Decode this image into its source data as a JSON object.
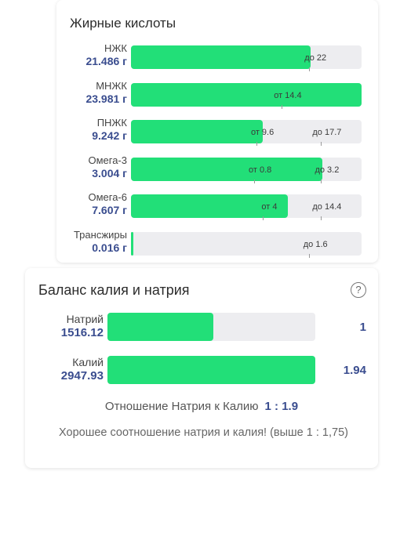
{
  "fatty_acids": {
    "title": "Жирные кислоты",
    "rows": [
      {
        "name": "НЖК",
        "value": "21.486 г",
        "fill_fraction": 0.78,
        "marks": [
          {
            "label": "до 22",
            "pos": 0.8
          }
        ]
      },
      {
        "name": "МНЖК",
        "value": "23.981 г",
        "fill_fraction": 1.0,
        "marks": [
          {
            "label": "от 14.4",
            "pos": 0.68
          }
        ]
      },
      {
        "name": "ПНЖК",
        "value": "9.242 г",
        "fill_fraction": 0.57,
        "marks": [
          {
            "label": "от 9.6",
            "pos": 0.57
          },
          {
            "label": "до 17.7",
            "pos": 0.85
          }
        ]
      },
      {
        "name": "Омега-3",
        "value": "3.004 г",
        "fill_fraction": 0.83,
        "marks": [
          {
            "label": "от 0.8",
            "pos": 0.56
          },
          {
            "label": "до 3.2",
            "pos": 0.85
          }
        ]
      },
      {
        "name": "Омега-6",
        "value": "7.607 г",
        "fill_fraction": 0.68,
        "marks": [
          {
            "label": "от 4",
            "pos": 0.6
          },
          {
            "label": "до 14.4",
            "pos": 0.85
          }
        ]
      },
      {
        "name": "Трансжиры",
        "value": "0.016 г",
        "fill_fraction": 0.01,
        "marks": [
          {
            "label": "до 1.6",
            "pos": 0.8
          }
        ]
      }
    ]
  },
  "balance": {
    "title": "Баланс калия и натрия",
    "help_icon": "question-circle-icon",
    "rows": [
      {
        "name": "Натрий",
        "value": "1516.12",
        "ratio": "1",
        "fill_fraction": 0.51
      },
      {
        "name": "Калий",
        "value": "2947.93",
        "ratio": "1.94",
        "fill_fraction": 1.0
      }
    ],
    "ratio_label": "Отношение Натрия к Калию",
    "ratio_value": "1 : 1.9",
    "note": "Хорошее соотношение натрия и калия! (выше 1 : 1,75)"
  },
  "colors": {
    "accent_green": "#22df78",
    "value_blue": "#3a4d8f",
    "track_gray": "#ededf0"
  }
}
